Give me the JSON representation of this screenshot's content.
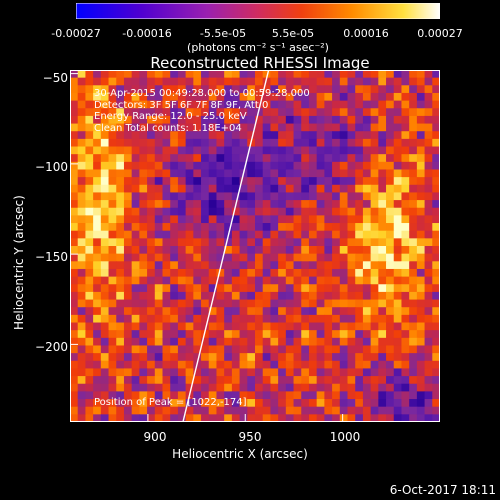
{
  "colorbar": {
    "ticks": [
      "-0.00027",
      "-0.00016",
      "-5.5e-05",
      "5.5e-05",
      "0.00016",
      "0.00027"
    ],
    "tick_values": [
      -0.00027,
      -0.00016,
      -5.5e-05,
      5.5e-05,
      0.00016,
      0.00027
    ],
    "unit_label": "(photons cm⁻² s⁻¹ asec⁻²)",
    "colors": [
      "#0000ff",
      "#5a00c8",
      "#a01cb4",
      "#dc3c50",
      "#ff6a00",
      "#ffb400",
      "#ffff60",
      "#ffffff"
    ]
  },
  "chart_data": {
    "type": "heatmap",
    "title": "Reconstructed RHESSI Image",
    "xlabel": "Heliocentric X (arcsec)",
    "ylabel": "Heliocentric Y (arcsec)",
    "xlim": [
      860,
      1050
    ],
    "ylim": [
      -243,
      -48
    ],
    "xticks": [
      "900",
      "950",
      "1000"
    ],
    "xtick_values": [
      900,
      950,
      1000
    ],
    "yticks": [
      "−50",
      "−100",
      "−150",
      "−200"
    ],
    "ytick_values": [
      -50,
      -100,
      -150,
      -200
    ],
    "limb_line": [
      [
        918,
        -243
      ],
      [
        962,
        -48
      ]
    ],
    "annotations": [
      "30-Apr-2015 00:49:28.000 to 00:59:28.000",
      "Detectors: 3F 5F 6F 7F 8F 9F, Att 0",
      "Energy Range: 12.0 - 25.0 keV",
      "Clean     Total counts: 1.18E+04"
    ],
    "peak_label": "Position of Peak = [1022,-174]"
  },
  "timestamp": "6-Oct-2017 18:11"
}
